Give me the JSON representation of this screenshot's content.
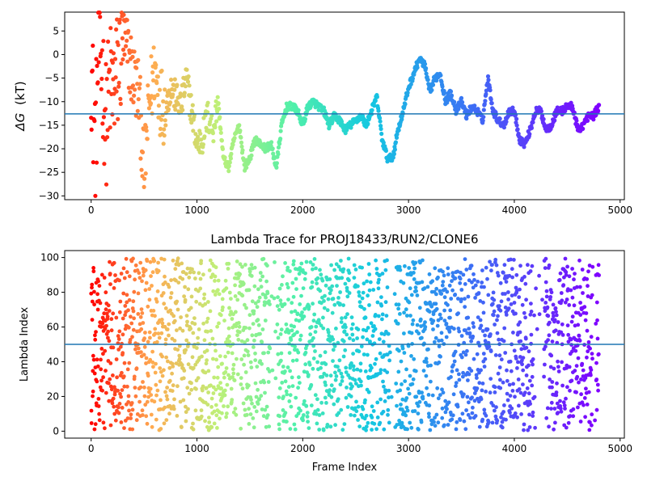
{
  "chart_data": [
    {
      "type": "scatter",
      "title": "",
      "xlabel": "",
      "ylabel": "ΔG (kT)",
      "ylabel_parts": {
        "symbol": "ΔG",
        "italic": "G",
        "unit": "(kT)"
      },
      "xlim": [
        -250,
        5040
      ],
      "ylim": [
        -30.8,
        9
      ],
      "x_ticks": [
        0,
        1000,
        2000,
        3000,
        4000,
        5000
      ],
      "y_ticks": [
        5,
        0,
        -5,
        -10,
        -15,
        -20,
        -25,
        -30
      ],
      "grid": false,
      "hline": -12.6,
      "hline_color": "#1f77b4",
      "colormap": "rainbow (reversed along frame index: red at frame 0, violet at last frame)",
      "n_frames": 4800,
      "series": [
        {
          "x": [
            0,
            20,
            40,
            60,
            80,
            100,
            120,
            140,
            160,
            180,
            200,
            250,
            300,
            350,
            400,
            450,
            500,
            550,
            600,
            650,
            700,
            750,
            800,
            850,
            900,
            950,
            1000,
            1050,
            1100,
            1150,
            1200,
            1250,
            1300,
            1350,
            1400,
            1450,
            1500,
            1550,
            1600,
            1650,
            1700,
            1750,
            1800,
            1850,
            1900,
            1950,
            2000,
            2050,
            2100,
            2150,
            2200,
            2250,
            2300,
            2350,
            2400,
            2450,
            2500,
            2550,
            2600,
            2650,
            2700,
            2750,
            2800,
            2850,
            2900,
            2950,
            3000,
            3050,
            3100,
            3150,
            3200,
            3250,
            3300,
            3350,
            3400,
            3450,
            3500,
            3550,
            3600,
            3650,
            3700,
            3750,
            3800,
            3850,
            3900,
            3950,
            4000,
            4050,
            4100,
            4150,
            4200,
            4250,
            4300,
            4350,
            4400,
            4450,
            4500,
            4550,
            4600,
            4650,
            4700,
            4750,
            4800
          ],
          "y": [
            0,
            -12,
            -20,
            -5,
            5,
            -3,
            -8,
            -15,
            -10,
            -6,
            -8,
            -4,
            3,
            0,
            -5,
            -8,
            -25,
            -10,
            -3,
            -9,
            -12,
            -7,
            -9,
            -11,
            -5,
            -12,
            -19,
            -18,
            -13,
            -16,
            -10,
            -22,
            -24,
            -18,
            -15,
            -24,
            -22,
            -18,
            -19,
            -20,
            -19,
            -24,
            -15,
            -11,
            -11,
            -12,
            -15,
            -11,
            -10,
            -11,
            -12,
            -15,
            -13,
            -14,
            -16,
            -15,
            -14,
            -13,
            -15,
            -12,
            -9,
            -18,
            -22,
            -22,
            -16,
            -12,
            -7,
            -4,
            -1,
            -2,
            -8,
            -5,
            -4,
            -10,
            -8,
            -12,
            -10,
            -13,
            -11,
            -12,
            -14,
            -5,
            -12,
            -14,
            -15,
            -12,
            -12,
            -18,
            -19,
            -16,
            -12,
            -12,
            -16,
            -15,
            -12,
            -12,
            -11,
            -11,
            -16,
            -15,
            -13,
            -13,
            -11
          ],
          "scatter_spread": "up to ±20 kT near frame 0, narrowing to a continuous trace after ~1700"
        }
      ]
    },
    {
      "type": "scatter",
      "title": "Lambda Trace for PROJ18433/RUN2/CLONE6",
      "xlabel": "Frame Index",
      "ylabel": "Lambda Index",
      "xlim": [
        -250,
        5040
      ],
      "ylim": [
        -4,
        104
      ],
      "x_ticks": [
        0,
        1000,
        2000,
        3000,
        4000,
        5000
      ],
      "y_ticks": [
        0,
        20,
        40,
        60,
        80,
        100
      ],
      "grid": false,
      "hline": 50,
      "hline_color": "#1f77b4",
      "colormap": "rainbow (reversed along frame index: red at frame 0, violet at last frame)",
      "n_frames": 4800,
      "series": [
        {
          "x": [
            0,
            4800
          ],
          "y_range": [
            0,
            99
          ],
          "coverage": "dense points spanning lambda 0–99 for nearly every frame; sparse vertical gaps near frames 1700–1800, 2850–2900 and 4200–4300"
        }
      ]
    }
  ]
}
